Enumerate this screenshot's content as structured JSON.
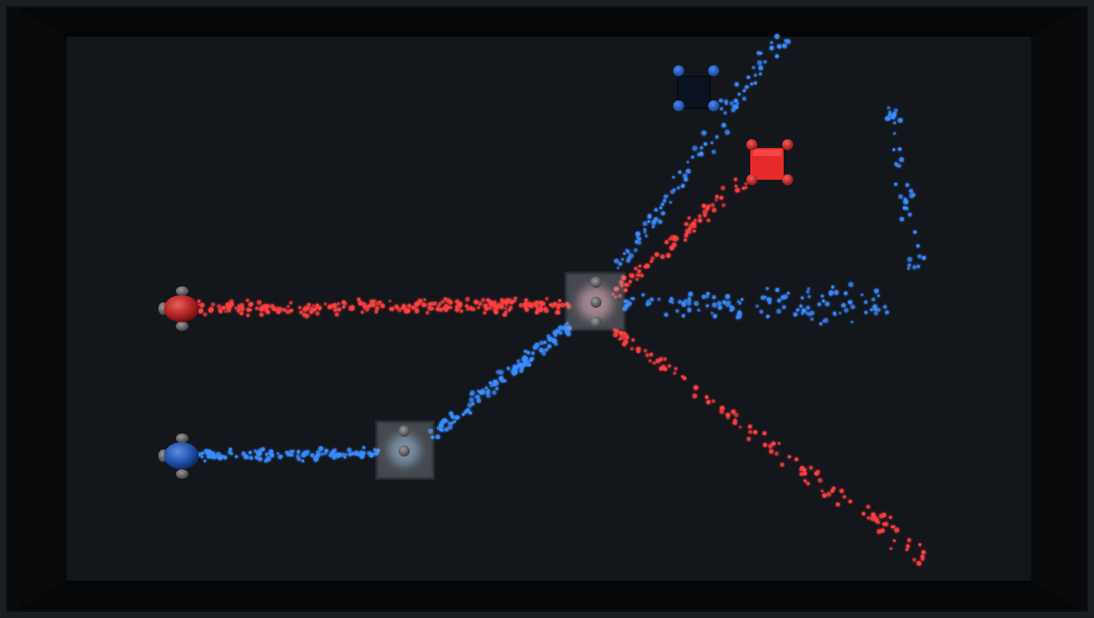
{
  "colors": {
    "background": "#0d0f12",
    "floor": "#13161b",
    "wall_top": "#0a0b0d",
    "wall_side": "#08090b",
    "red_beam": "#ff4040",
    "blue_beam": "#3a8cff",
    "red_emitter": "#c0282a",
    "blue_emitter": "#2a5aa8",
    "red_target": "#e52a2a",
    "blue_target": "#0b1220",
    "splitter_glass": "#9aa0a8"
  },
  "icons": {
    "red_emitter": "red-laser-emitter-icon",
    "blue_emitter": "blue-laser-emitter-icon",
    "red_target": "red-target-block-icon",
    "blue_target": "blue-target-block-icon",
    "splitter": "beam-splitter-block-icon"
  }
}
